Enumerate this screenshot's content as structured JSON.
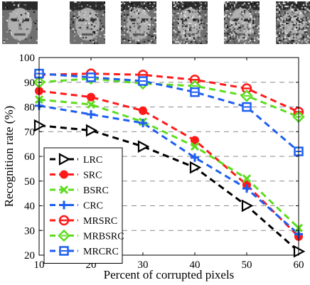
{
  "faces_strip": {
    "count": 6,
    "noise_levels": [
      0.1,
      0.2,
      0.3,
      0.4,
      0.5,
      0.6
    ]
  },
  "chart_data": {
    "type": "line",
    "xlabel": "Percent of corrupted pixels",
    "ylabel": "Recognition rate (%)",
    "x": [
      10,
      20,
      30,
      40,
      50,
      60
    ],
    "xticks": [
      10,
      20,
      30,
      40,
      50,
      60
    ],
    "yticks": [
      20,
      30,
      40,
      50,
      60,
      70,
      80,
      90,
      100
    ],
    "xlim": [
      10,
      60
    ],
    "ylim": [
      20,
      100
    ],
    "grid": "horizontal dashed",
    "legend_position": "lower-left",
    "series": [
      {
        "name": "LRC",
        "color": "#000000",
        "marker": "triangle-right",
        "values": [
          72.5,
          70.5,
          64.0,
          55.5,
          40.0,
          21.5
        ]
      },
      {
        "name": "SRC",
        "color": "#ff1a1a",
        "marker": "circle",
        "values": [
          86.5,
          84.0,
          78.5,
          66.5,
          48.5,
          27.5
        ]
      },
      {
        "name": "BSRC",
        "color": "#5ddc1e",
        "marker": "x",
        "values": [
          83.0,
          81.0,
          74.0,
          64.0,
          51.0,
          31.0
        ]
      },
      {
        "name": "CRC",
        "color": "#1e5ef0",
        "marker": "plus",
        "values": [
          80.5,
          77.0,
          73.5,
          59.5,
          47.0,
          28.5
        ]
      },
      {
        "name": "MRSRC",
        "color": "#ff1a1a",
        "marker": "circle-line",
        "values": [
          93.0,
          93.5,
          93.0,
          91.0,
          87.5,
          78.0
        ]
      },
      {
        "name": "MRBSRC",
        "color": "#5ddc1e",
        "marker": "diamond",
        "values": [
          90.0,
          91.5,
          89.5,
          88.5,
          84.5,
          76.0
        ]
      },
      {
        "name": "MRCRC",
        "color": "#1e5ef0",
        "marker": "square",
        "values": [
          93.5,
          92.0,
          90.5,
          86.0,
          80.0,
          62.0
        ]
      }
    ]
  }
}
